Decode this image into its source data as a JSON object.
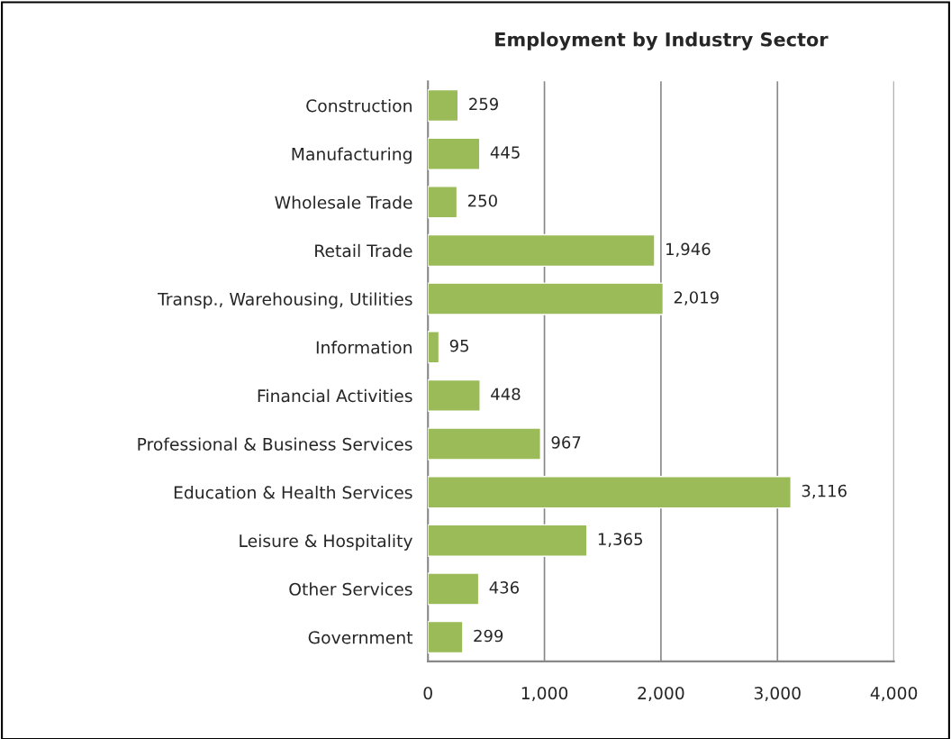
{
  "chart_data": {
    "type": "bar",
    "orientation": "horizontal",
    "title": "Employment by Industry Sector",
    "categories": [
      "Construction",
      "Manufacturing",
      "Wholesale Trade",
      "Retail Trade",
      "Transp., Warehousing, Utilities",
      "Information",
      "Financial Activities",
      "Professional & Business Services",
      "Education & Health Services",
      "Leisure & Hospitality",
      "Other Services",
      "Government"
    ],
    "values": [
      259,
      445,
      250,
      1946,
      2019,
      95,
      448,
      967,
      3116,
      1365,
      436,
      299
    ],
    "value_labels": [
      "259",
      "445",
      "250",
      "1,946",
      "2,019",
      "95",
      "448",
      "967",
      "3,116",
      "1,365",
      "436",
      "299"
    ],
    "color": "#9bbb59",
    "xlim": [
      0,
      4000
    ],
    "xticks": [
      0,
      {
        "value": 1000,
        "label": "1,000"
      },
      {
        "value": 2000,
        "label": "2,000"
      },
      {
        "value": 3000,
        "label": "3,000"
      },
      {
        "value": 4000,
        "label": "4,000"
      }
    ],
    "grid": "x"
  }
}
